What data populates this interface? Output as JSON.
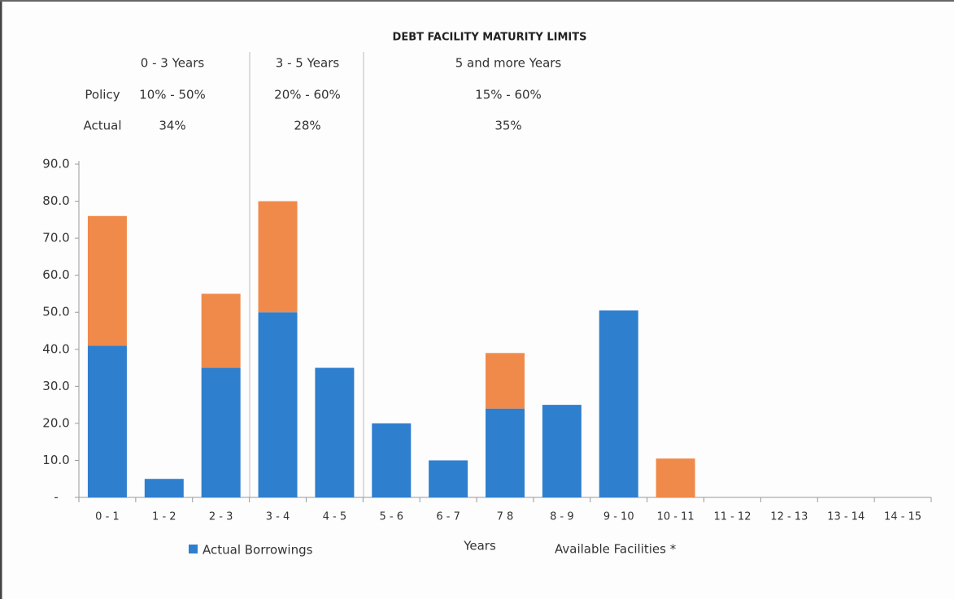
{
  "chart_data": {
    "type": "bar",
    "stacked": true,
    "title": "DEBT FACILITY MATURITY LIMITS",
    "maturity_bands": {
      "policy_label": "Policy",
      "actual_label": "Actual",
      "bands": [
        {
          "label": "0 - 3 Years",
          "policy": "10% - 50%",
          "actual": "34%"
        },
        {
          "label": "3 - 5 Years",
          "policy": "20% - 60%",
          "actual": "28%"
        },
        {
          "label": "5 and more Years",
          "policy": "15% - 60%",
          "actual": "35%"
        }
      ]
    },
    "x_label": "Years",
    "categories": [
      "0 - 1",
      "1 - 2",
      "2 - 3",
      "3 - 4",
      "4 - 5",
      "5 - 6",
      "6 - 7",
      "7  8",
      "8 - 9",
      "9 - 10",
      "10 - 11",
      "11 - 12",
      "12 - 13",
      "13 - 14",
      "14 - 15"
    ],
    "series": [
      {
        "name": "Actual Borrowings",
        "color": "#2f7fcf",
        "values": [
          41,
          5,
          35,
          50,
          35,
          20,
          10,
          24,
          25,
          50.5,
          0,
          0,
          0,
          0,
          0
        ]
      },
      {
        "name": "Available Facilities *",
        "color": "#f08a4b",
        "values": [
          35,
          0,
          20,
          30,
          0,
          0,
          0,
          15,
          0,
          0,
          10.5,
          0,
          0,
          0,
          0
        ]
      }
    ],
    "ylim": [
      0,
      90
    ],
    "yticks": [
      {
        "value": 0,
        "label": "-"
      },
      {
        "value": 10,
        "label": "10.0"
      },
      {
        "value": 20,
        "label": "20.0"
      },
      {
        "value": 30,
        "label": "30.0"
      },
      {
        "value": 40,
        "label": "40.0"
      },
      {
        "value": 50,
        "label": "50.0"
      },
      {
        "value": 60,
        "label": "60.0"
      },
      {
        "value": 70,
        "label": "70.0"
      },
      {
        "value": 80,
        "label": "80.0"
      },
      {
        "value": 90,
        "label": "90.0"
      }
    ]
  }
}
